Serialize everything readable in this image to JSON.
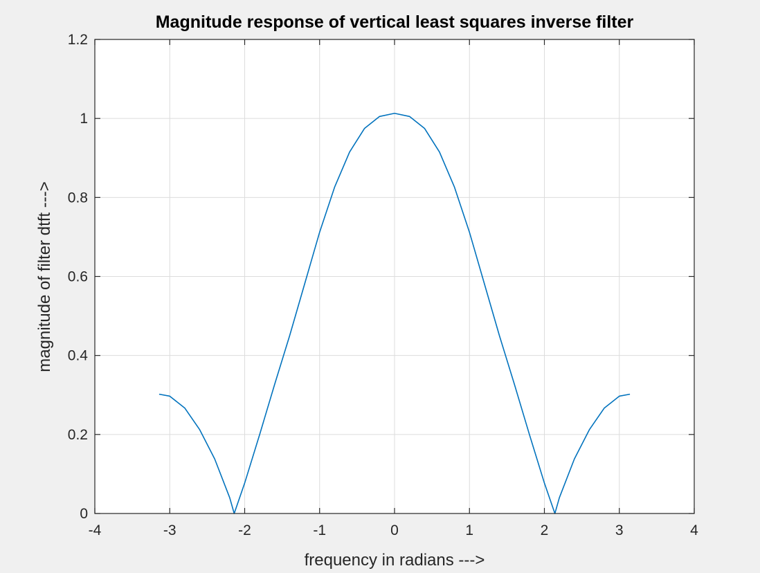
{
  "chart_data": {
    "type": "line",
    "title": "Magnitude response of vertical least squares inverse filter",
    "xlabel": "frequency in radians --->",
    "ylabel": "magnitude of filter dtft  --->",
    "xlim": [
      -4,
      4
    ],
    "ylim": [
      0,
      1.2
    ],
    "xticks": [
      -4,
      -3,
      -2,
      -1,
      0,
      1,
      2,
      3,
      4
    ],
    "xtick_labels": [
      "-4",
      "-3",
      "-2",
      "-1",
      "0",
      "1",
      "2",
      "3",
      "4"
    ],
    "yticks": [
      0,
      0.2,
      0.4,
      0.6,
      0.8,
      1,
      1.2
    ],
    "ytick_labels": [
      "0",
      "0.2",
      "0.4",
      "0.6",
      "0.8",
      "1",
      "1.2"
    ],
    "grid": true,
    "legend": "none",
    "series": [
      {
        "color": "#0072bd",
        "x": [
          -3.1416,
          -3.0,
          -2.8,
          -2.6,
          -2.4,
          -2.2,
          -2.14,
          -2.0,
          -1.8,
          -1.6,
          -1.4,
          -1.2,
          -1.0,
          -0.8,
          -0.6,
          -0.4,
          -0.2,
          0.0,
          0.2,
          0.4,
          0.6,
          0.8,
          1.0,
          1.2,
          1.4,
          1.6,
          1.8,
          2.0,
          2.14,
          2.2,
          2.4,
          2.6,
          2.8,
          3.0,
          3.1416
        ],
        "y": [
          0.302,
          0.297,
          0.267,
          0.212,
          0.138,
          0.04,
          0.0,
          0.077,
          0.2,
          0.327,
          0.45,
          0.581,
          0.712,
          0.826,
          0.915,
          0.975,
          1.005,
          1.013,
          1.005,
          0.975,
          0.915,
          0.826,
          0.712,
          0.581,
          0.45,
          0.327,
          0.2,
          0.077,
          0.0,
          0.04,
          0.138,
          0.212,
          0.267,
          0.297,
          0.302
        ]
      }
    ]
  }
}
